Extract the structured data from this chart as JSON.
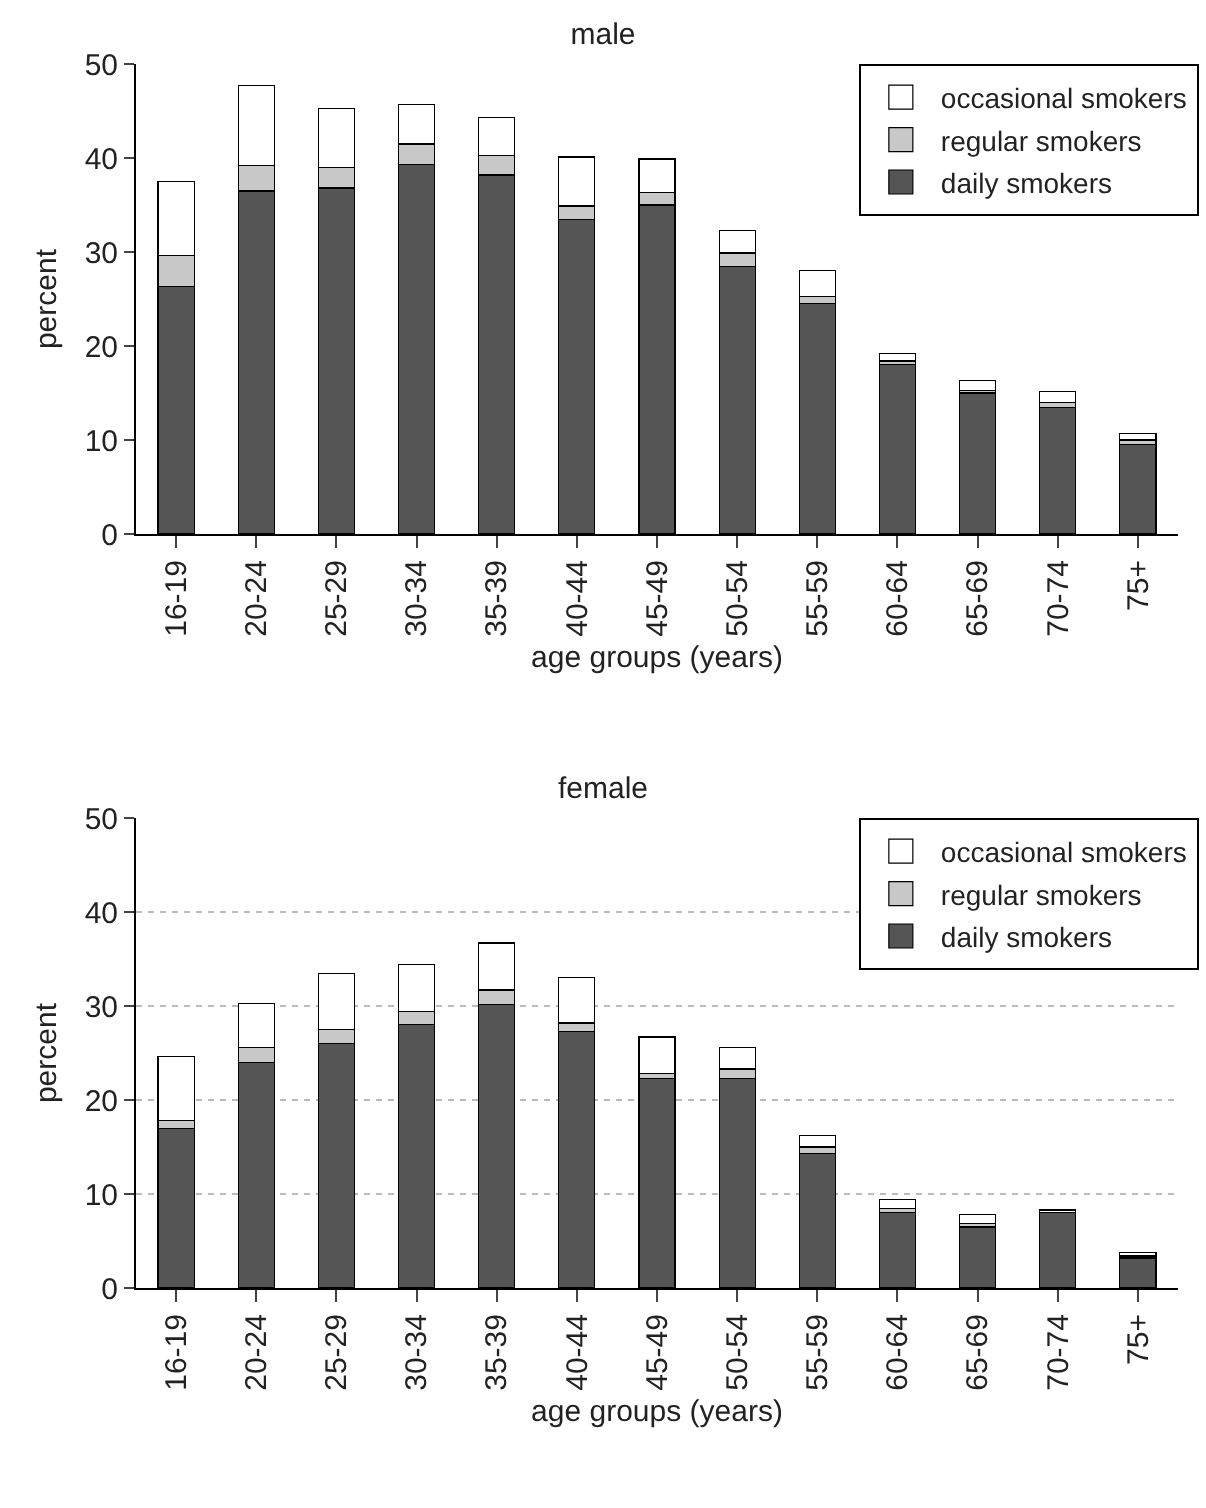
{
  "chart_data": [
    {
      "type": "bar",
      "title": "male",
      "xlabel": "age groups (years)",
      "ylabel": "percent",
      "stacked": true,
      "categories": [
        "16-19",
        "20-24",
        "25-29",
        "30-34",
        "35-39",
        "40-44",
        "45-49",
        "50-54",
        "55-59",
        "60-64",
        "65-69",
        "70-74",
        "75+"
      ],
      "ylim": [
        0,
        50
      ],
      "yticks": [
        0,
        10,
        20,
        30,
        40,
        50
      ],
      "grid": false,
      "legend": "top right",
      "series": [
        {
          "name": "daily smokers",
          "color": "#555555",
          "values": [
            26.3,
            36.5,
            36.8,
            39.3,
            38.2,
            33.5,
            35,
            28.5,
            24.5,
            18,
            15,
            13.5,
            9.5
          ]
        },
        {
          "name": "regular smokers",
          "color": "#c8c8c8",
          "values": [
            3.3,
            2.7,
            2.2,
            2.2,
            2.1,
            1.4,
            1.3,
            1.4,
            0.8,
            0.4,
            0.3,
            0.5,
            0.5
          ]
        },
        {
          "name": "occasional smokers",
          "color": "#ffffff",
          "values": [
            7.9,
            8.5,
            6.3,
            4.2,
            4,
            5.2,
            3.6,
            2.4,
            2.7,
            0.8,
            1,
            1.2,
            0.7
          ]
        }
      ]
    },
    {
      "type": "bar",
      "title": "female",
      "xlabel": "age groups (years)",
      "ylabel": "percent",
      "stacked": true,
      "categories": [
        "16-19",
        "20-24",
        "25-29",
        "30-34",
        "35-39",
        "40-44",
        "45-49",
        "50-54",
        "55-59",
        "60-64",
        "65-69",
        "70-74",
        "75+"
      ],
      "ylim": [
        0,
        50
      ],
      "yticks": [
        0,
        10,
        20,
        30,
        40,
        50
      ],
      "grid": "y",
      "legend": "top right",
      "series": [
        {
          "name": "daily smokers",
          "color": "#555555",
          "values": [
            17,
            24,
            26,
            28,
            30.2,
            27.3,
            22.3,
            22.3,
            14.3,
            8,
            6.5,
            8,
            3.2
          ]
        },
        {
          "name": "regular smokers",
          "color": "#c8c8c8",
          "values": [
            0.8,
            1.6,
            1.5,
            1.4,
            1.5,
            0.9,
            0.5,
            1,
            0.7,
            0.5,
            0.4,
            null,
            0.2
          ]
        },
        {
          "name": "occasional smokers",
          "color": "#ffffff",
          "values": [
            6.8,
            4.7,
            6,
            5,
            5,
            4.8,
            3.9,
            2.3,
            1.2,
            0.9,
            0.9,
            0.3,
            0.4
          ]
        }
      ]
    }
  ]
}
